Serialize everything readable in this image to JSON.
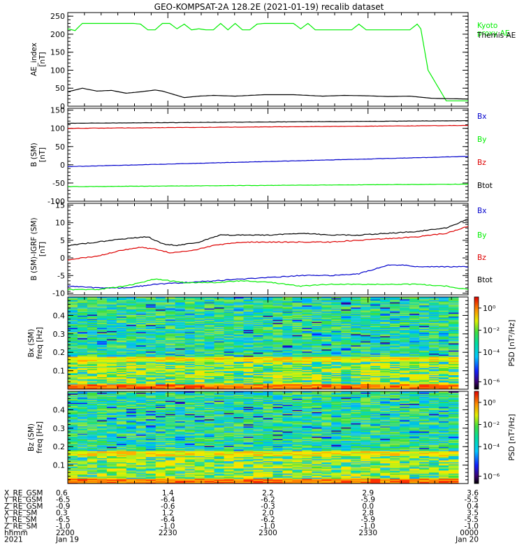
{
  "title": "GEO-KOMPSAT-2A 128.2E (2021-01-19) recalib dataset",
  "chart_data": [
    {
      "type": "line",
      "ylabel": [
        "AE_index",
        "[nT]"
      ],
      "ylim": [
        0,
        260
      ],
      "yticks": [
        0,
        50,
        100,
        150,
        200,
        250
      ],
      "legend_placement": "right",
      "series": [
        {
          "name": "Kyoto proxy AE",
          "label_lines": [
            "Kyoto",
            "proxy AE"
          ],
          "color": "#00ee00",
          "x": [
            0,
            1,
            2,
            9,
            10,
            11,
            12,
            13,
            14,
            15,
            16,
            17,
            18,
            19,
            20,
            21,
            22,
            23,
            24,
            25,
            26,
            27,
            28,
            29,
            30,
            31,
            32,
            33,
            34,
            35,
            36,
            37,
            38,
            39,
            40,
            41,
            42,
            43,
            44,
            45,
            46,
            47,
            48,
            48.5,
            49.5,
            52,
            55
          ],
          "y": [
            215,
            210,
            230,
            230,
            228,
            212,
            212,
            230,
            230,
            215,
            228,
            212,
            215,
            212,
            212,
            230,
            212,
            230,
            212,
            212,
            228,
            230,
            230,
            230,
            230,
            230,
            215,
            230,
            212,
            212,
            212,
            212,
            212,
            212,
            228,
            212,
            212,
            212,
            212,
            212,
            212,
            212,
            228,
            215,
            100,
            15,
            15
          ]
        },
        {
          "name": "Themis AE",
          "label_lines": [
            "Themis AE"
          ],
          "color": "#000000",
          "x": [
            0,
            2,
            4,
            6,
            8,
            10,
            12,
            13,
            16,
            18,
            20,
            23,
            27,
            31,
            35,
            38,
            41,
            44,
            47,
            50,
            52,
            55
          ],
          "y": [
            40,
            50,
            42,
            44,
            36,
            40,
            45,
            42,
            24,
            28,
            30,
            28,
            32,
            32,
            28,
            30,
            29,
            27,
            28,
            22,
            21,
            20
          ]
        }
      ]
    },
    {
      "type": "line",
      "ylabel": [
        "B (SM)",
        "[nT]"
      ],
      "ylim": [
        -100,
        155
      ],
      "yticks": [
        -100,
        -50,
        0,
        50,
        100,
        150
      ],
      "legend_placement": "right",
      "series": [
        {
          "name": "Bx",
          "color": "#0000cc",
          "x": [
            0,
            55
          ],
          "y": [
            -5,
            23
          ]
        },
        {
          "name": "By",
          "color": "#00ee00",
          "x": [
            0,
            55
          ],
          "y": [
            -60,
            -53
          ]
        },
        {
          "name": "Bz",
          "color": "#dd0000",
          "x": [
            0,
            55
          ],
          "y": [
            100,
            108
          ]
        },
        {
          "name": "Btot",
          "color": "#000000",
          "x": [
            0,
            55
          ],
          "y": [
            114,
            121
          ]
        }
      ]
    },
    {
      "type": "line",
      "ylabel": [
        "B (SM)-IGRF (SM)",
        "[nT]"
      ],
      "ylim": [
        -10.5,
        15.5
      ],
      "yticks": [
        -10,
        -5,
        0,
        5,
        10,
        15
      ],
      "legend_placement": "right",
      "series": [
        {
          "name": "Bx",
          "color": "#0000cc",
          "x": [
            0,
            4,
            8,
            12,
            16,
            20,
            24,
            28,
            32,
            36,
            40,
            44,
            46,
            48,
            50,
            52,
            55
          ],
          "y": [
            -8,
            -8.5,
            -8.5,
            -7.5,
            -7,
            -6.5,
            -6,
            -5.5,
            -5,
            -5,
            -4.5,
            -2,
            -2,
            -2.5,
            -2.5,
            -2.5,
            -2.5
          ]
        },
        {
          "name": "By",
          "color": "#00ee00",
          "x": [
            0,
            4,
            8,
            10,
            12,
            14,
            16,
            20,
            24,
            28,
            32,
            36,
            40,
            44,
            48,
            52,
            55
          ],
          "y": [
            -9,
            -9,
            -8,
            -7,
            -6,
            -6.5,
            -7,
            -7,
            -6.5,
            -7,
            -8,
            -7.5,
            -7.5,
            -7.5,
            -7.5,
            -8,
            -9
          ]
        },
        {
          "name": "Bz",
          "color": "#dd0000",
          "x": [
            0,
            4,
            7,
            10,
            12,
            14,
            17,
            20,
            24,
            28,
            32,
            36,
            40,
            44,
            48,
            52,
            55
          ],
          "y": [
            -0.5,
            0.5,
            2,
            3,
            2.5,
            1.5,
            2,
            3.5,
            4.5,
            4.5,
            4.5,
            4.5,
            5,
            5.5,
            6,
            7,
            9
          ]
        },
        {
          "name": "Btot",
          "color": "#000000",
          "x": [
            0,
            4,
            8,
            11,
            13,
            15,
            18,
            21,
            24,
            28,
            32,
            36,
            40,
            44,
            48,
            52,
            55
          ],
          "y": [
            3.5,
            4.5,
            5.5,
            6,
            4,
            3.5,
            4.5,
            6.5,
            6.5,
            6.5,
            7,
            6.5,
            6.5,
            7,
            7.5,
            8.5,
            11
          ]
        }
      ]
    },
    {
      "type": "heatmap",
      "ylabel": [
        "Bx (SM)",
        "freq [Hz]"
      ],
      "ylim": [
        0,
        0.5
      ],
      "yticks": [
        0.1,
        0.2,
        0.3,
        0.4
      ],
      "colorbar": {
        "label": "PSD [nT²/Hz]",
        "ticks": [
          "10⁰",
          "10⁻²",
          "10⁻⁴",
          "10⁻⁶"
        ]
      }
    },
    {
      "type": "heatmap",
      "ylabel": [
        "Bz (SM)",
        "freq [Hz]"
      ],
      "ylim": [
        0,
        0.5
      ],
      "yticks": [
        0.1,
        0.2,
        0.3,
        0.4
      ],
      "colorbar": {
        "label": "PSD [nT²/Hz]",
        "ticks": [
          "10⁰",
          "10⁻²",
          "10⁻⁴",
          "10⁻⁶"
        ]
      }
    }
  ],
  "time_axis": {
    "range_minutes": [
      0,
      120
    ],
    "major_ticks_minutes": [
      0,
      30,
      60,
      90,
      120
    ]
  },
  "ephemeris": {
    "rows": [
      {
        "label": "X_RE_GSM",
        "values": [
          "0.6",
          "1.4",
          "2.2",
          "2.9",
          "3.6"
        ]
      },
      {
        "label": "Y_RE_GSM",
        "values": [
          "-6.5",
          "-6.4",
          "-6.2",
          "-5.9",
          "-5.5"
        ]
      },
      {
        "label": "Z_RE_GSM",
        "values": [
          "-0.9",
          "-0.6",
          "-0.3",
          "0.0",
          "0.4"
        ]
      },
      {
        "label": "X_RE_SM",
        "values": [
          "0.3",
          "1.2",
          "2.0",
          "2.8",
          "3.5"
        ]
      },
      {
        "label": "Y_RE_SM",
        "values": [
          "-6.5",
          "-6.4",
          "-6.2",
          "-5.9",
          "-5.5"
        ]
      },
      {
        "label": "Z_RE_SM",
        "values": [
          "-1.0",
          "-1.0",
          "-1.0",
          "-1.0",
          "-1.0"
        ]
      },
      {
        "label": "hhmm",
        "values": [
          "2200",
          "2230",
          "2300",
          "2330",
          "0000"
        ]
      },
      {
        "label": "2021",
        "values": [
          "Jan 19",
          "",
          "",
          "",
          "Jan 20"
        ]
      }
    ]
  }
}
